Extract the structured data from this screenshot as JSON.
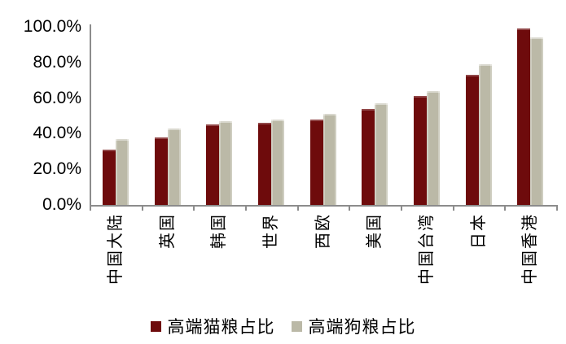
{
  "chart_data": {
    "type": "bar",
    "title": "",
    "categories": [
      "中国大陆",
      "英国",
      "韩国",
      "世界",
      "西欧",
      "美国",
      "中国台湾",
      "日本",
      "中国香港"
    ],
    "series": [
      {
        "name": "高端猫粮占比",
        "color": "#6E0B0C",
        "values": [
          31,
          38,
          45,
          46,
          48,
          54,
          61,
          73,
          99
        ]
      },
      {
        "name": "高端狗粮占比",
        "color": "#BBB9A7",
        "values": [
          37,
          43,
          47,
          48,
          51,
          57,
          64,
          79,
          94
        ]
      }
    ],
    "unit": "%",
    "ylim": [
      0,
      100
    ],
    "yticks": [
      {
        "value": 0,
        "label": "0.0%"
      },
      {
        "value": 20,
        "label": "20.0%"
      },
      {
        "value": 40,
        "label": "40.0%"
      },
      {
        "value": 60,
        "label": "60.0%"
      },
      {
        "value": 80,
        "label": "80.0%"
      },
      {
        "value": 100,
        "label": "100.0%"
      }
    ],
    "grid": false,
    "legend_position": "bottom",
    "xlabel_rotation": -90,
    "axis_color": "#8C8C8C"
  }
}
